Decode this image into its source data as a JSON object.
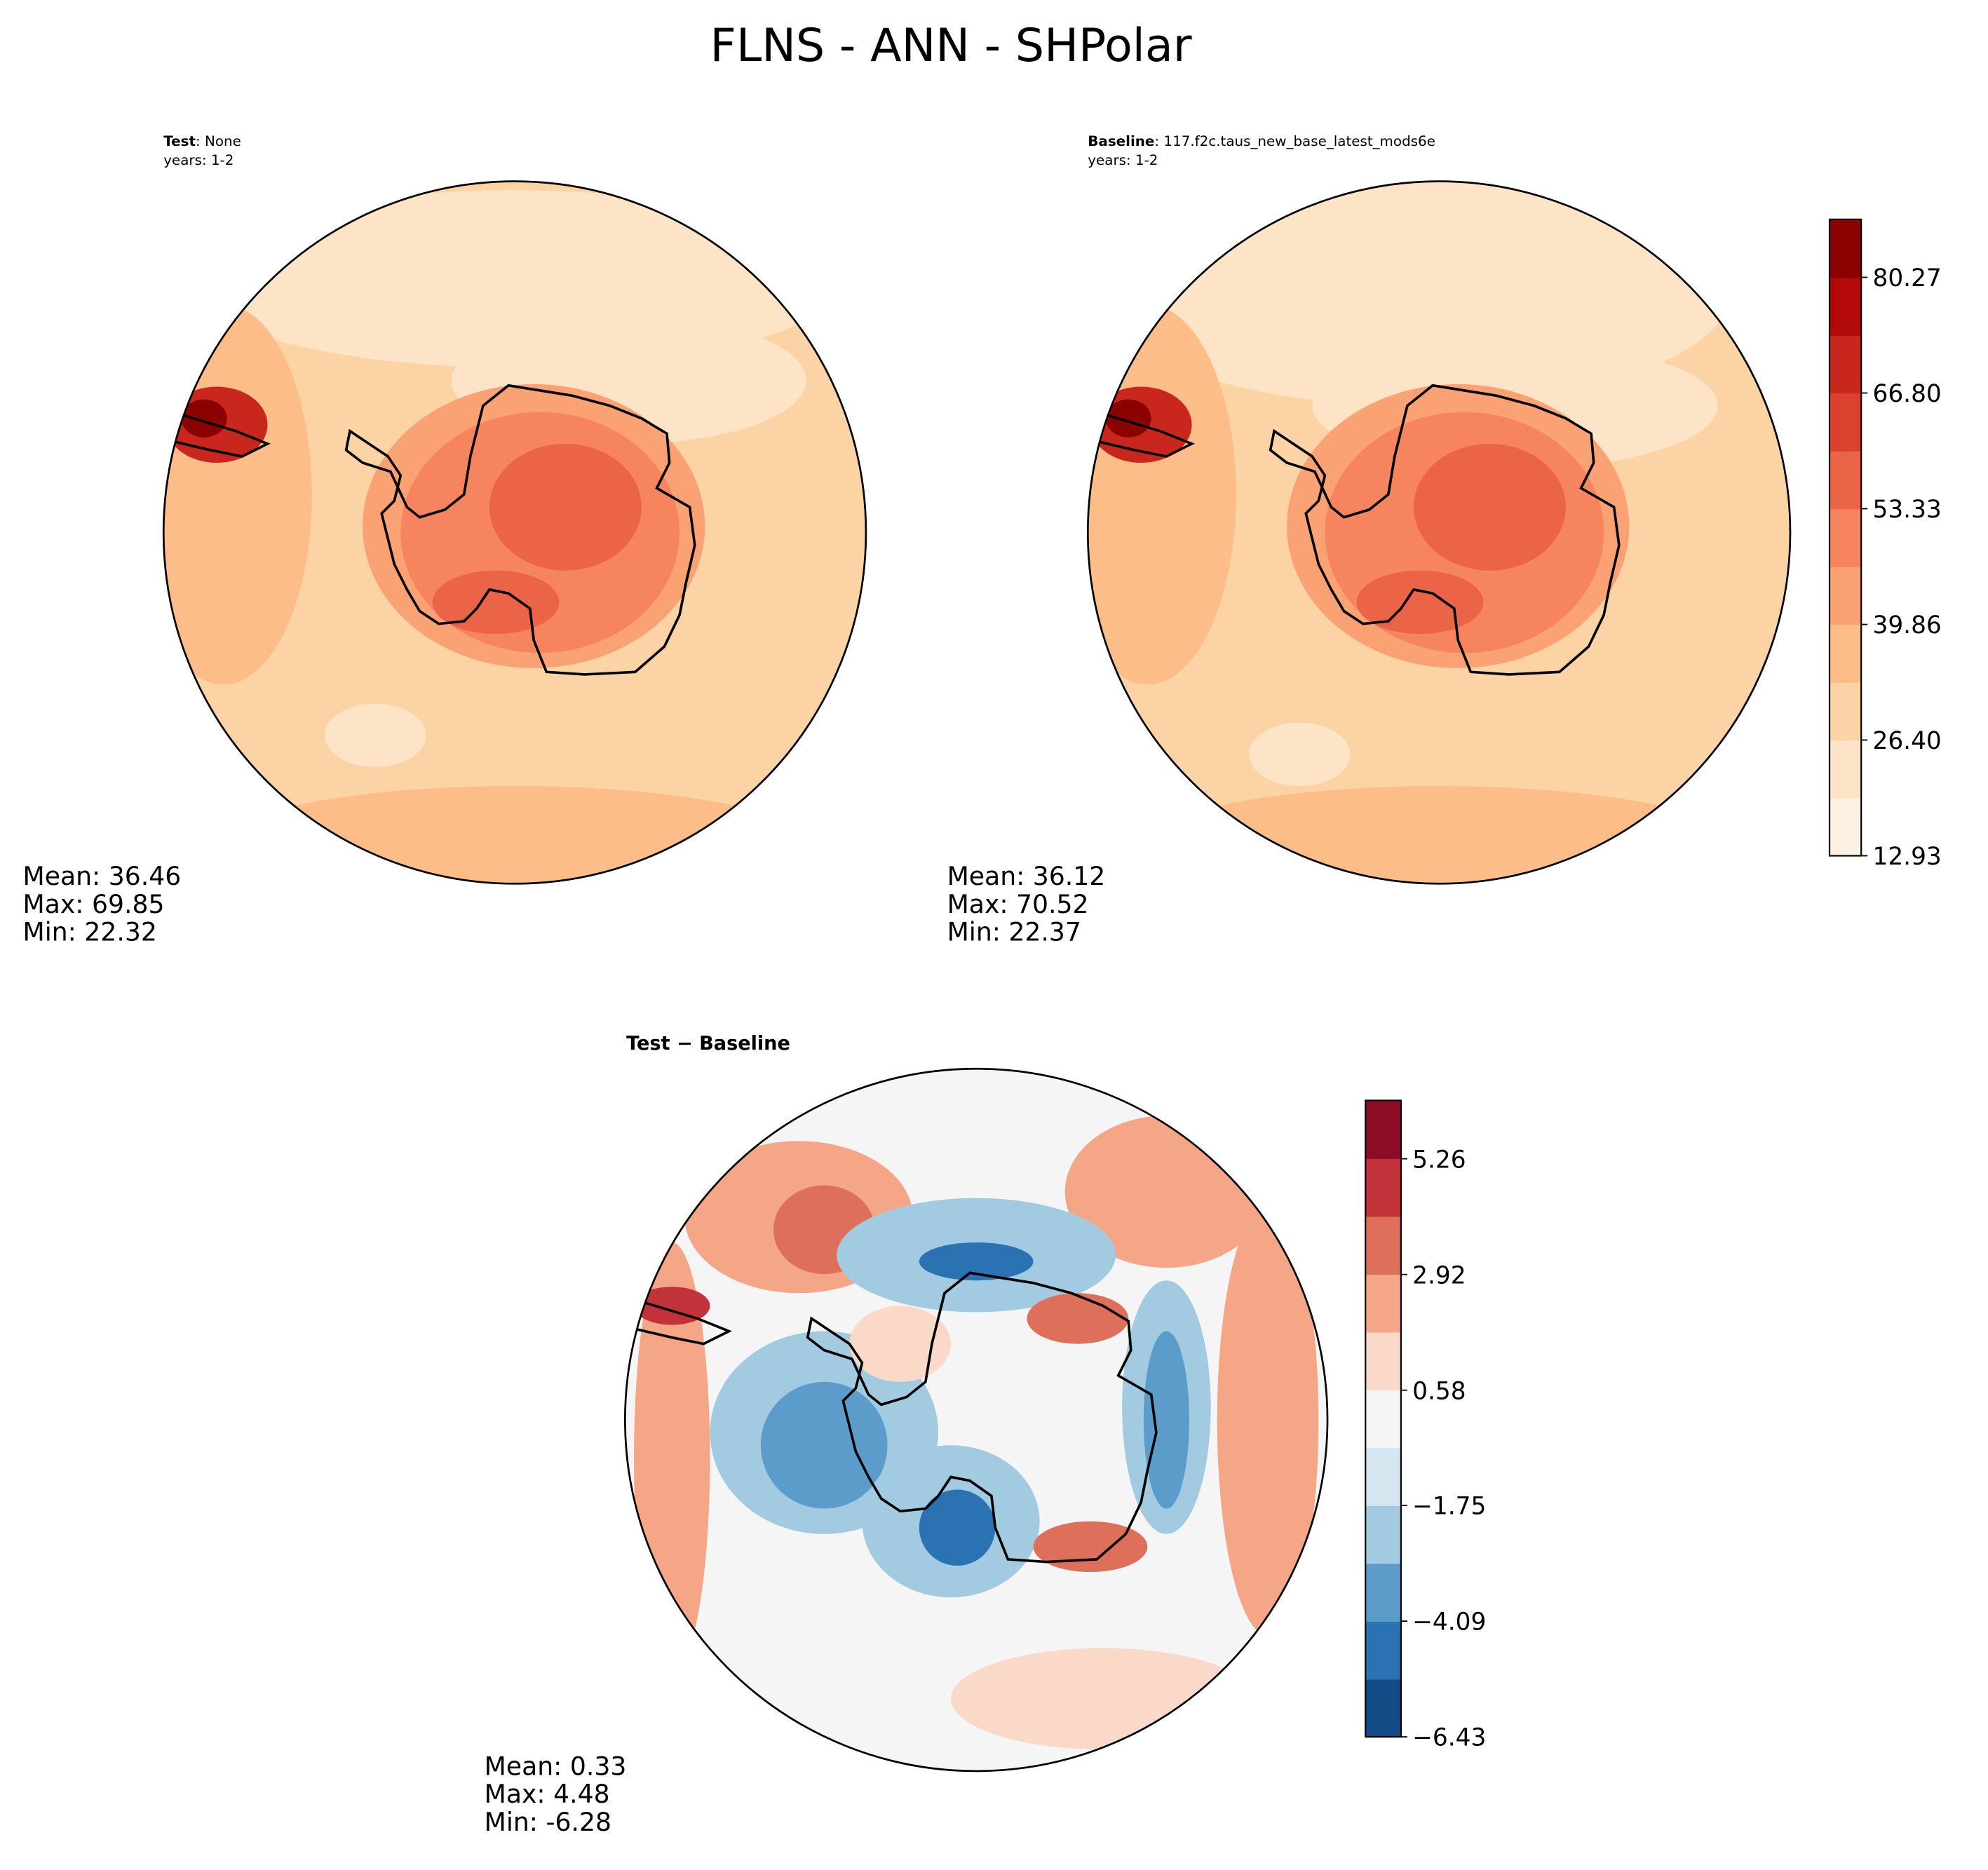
{
  "title": "FLNS - ANN - SHPolar",
  "panels": [
    {
      "name": "Test",
      "detail": ": None",
      "years": "years: 1-2",
      "stats": [
        "Mean: 36.46",
        "Max: 69.85",
        "Min: 22.32"
      ]
    },
    {
      "name": "Baseline",
      "detail": ": 117.f2c.taus_new_base_latest_mods6e",
      "years": "years: 1-2",
      "stats": [
        "Mean: 36.12",
        "Max: 70.52",
        "Min: 22.37"
      ]
    },
    {
      "name": "Test − Baseline",
      "stats": [
        "Mean:  0.33",
        "Max:  4.48",
        "Min: -6.28"
      ]
    }
  ],
  "colorbars": [
    {
      "lim": [
        12.93,
        87.015
      ],
      "ticks": [
        {
          "value": 12.93,
          "label": "12.93"
        },
        {
          "value": 26.4,
          "label": "26.40"
        },
        {
          "value": 39.86,
          "label": "39.86"
        },
        {
          "value": 53.33,
          "label": "53.33"
        },
        {
          "value": 66.8,
          "label": "66.80"
        },
        {
          "value": 80.27,
          "label": "80.27"
        }
      ],
      "colors": [
        "#fdf1e3",
        "#fde4c6",
        "#fcd3a4",
        "#fcbd88",
        "#fba275",
        "#f6845e",
        "#ec6448",
        "#dc4130",
        "#c9261e",
        "#b20a0b",
        "#8b0000"
      ]
    },
    {
      "lim": [
        -6.43,
        6.44
      ],
      "ticks": [
        {
          "value": -6.43,
          "label": "−6.43"
        },
        {
          "value": -4.09,
          "label": "−4.09"
        },
        {
          "value": -1.75,
          "label": "−1.75"
        },
        {
          "value": 0.58,
          "label": "0.58"
        },
        {
          "value": 2.92,
          "label": "2.92"
        },
        {
          "value": 5.26,
          "label": "5.26"
        }
      ],
      "colors": [
        "#134b87",
        "#2a72b2",
        "#5b9ccb",
        "#a2cbe2",
        "#d6e6f1",
        "#f5f5f5",
        "#fbd9c9",
        "#f4a687",
        "#de6f5b",
        "#c1323b",
        "#8d0d26"
      ]
    }
  ]
}
